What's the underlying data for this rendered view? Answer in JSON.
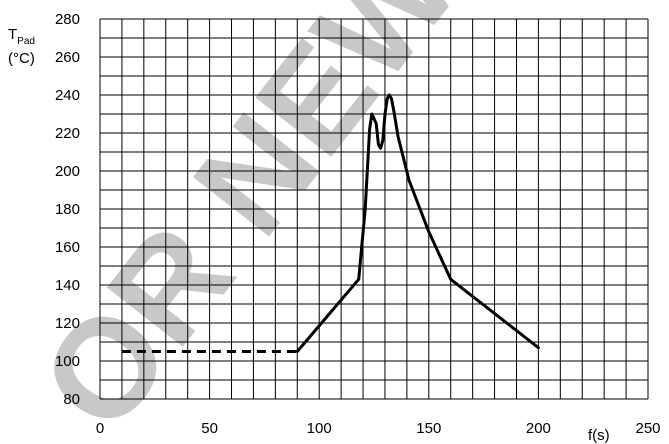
{
  "chart_data": {
    "type": "line",
    "title": "",
    "ylabel_main": "T",
    "ylabel_sub": "Pad",
    "ylabel_unit": "(°C)",
    "xlabel": "f(s)",
    "xlim": [
      0,
      250
    ],
    "ylim": [
      80,
      280
    ],
    "x_ticks": [
      0,
      50,
      100,
      150,
      200,
      250
    ],
    "y_ticks": [
      80,
      100,
      120,
      140,
      160,
      180,
      200,
      220,
      240,
      260,
      280
    ],
    "x_minor_step": 10,
    "y_minor_step": 10,
    "grid": true,
    "series": [
      {
        "style": "dashed",
        "x": [
          10,
          90
        ],
        "y": [
          105,
          105
        ]
      },
      {
        "style": "solid",
        "x": [
          90,
          118,
          121,
          123,
          124,
          126,
          127,
          128,
          129,
          130,
          131,
          132,
          133,
          134,
          136,
          141,
          150,
          160,
          200
        ],
        "y": [
          105,
          143,
          180,
          222,
          230,
          225,
          214,
          212,
          216,
          230,
          238,
          240,
          238,
          232,
          218,
          195,
          168,
          143,
          107
        ]
      }
    ],
    "watermark": "OR NEW",
    "watermark_color": "#c8c8c8",
    "line_color": "#000000"
  }
}
